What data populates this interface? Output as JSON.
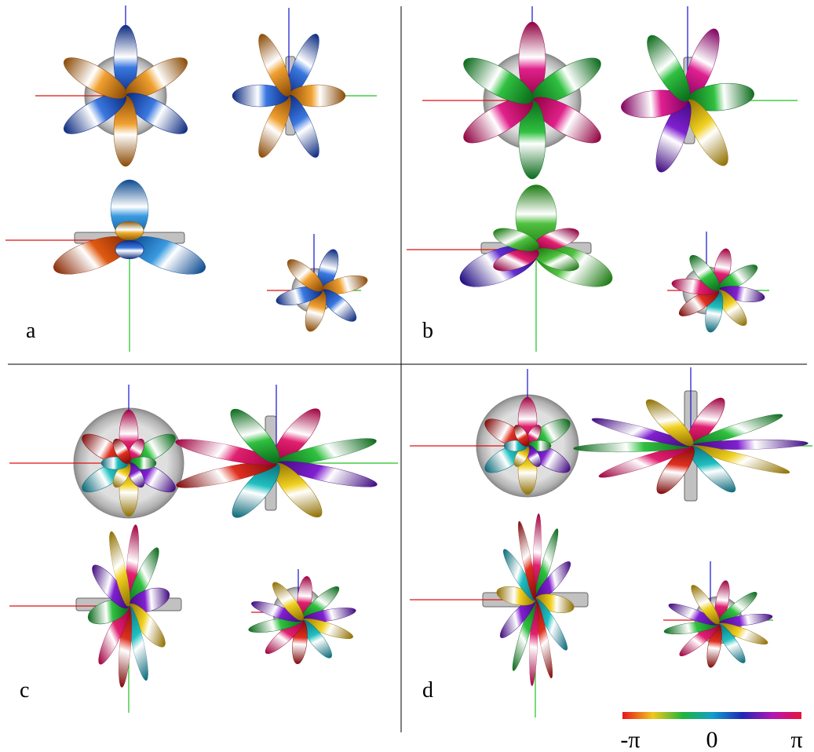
{
  "panels": [
    {
      "label": "a"
    },
    {
      "label": "b"
    },
    {
      "label": "c"
    },
    {
      "label": "d"
    }
  ],
  "colorbar": {
    "labels": [
      "-π",
      "0",
      "π"
    ]
  }
}
